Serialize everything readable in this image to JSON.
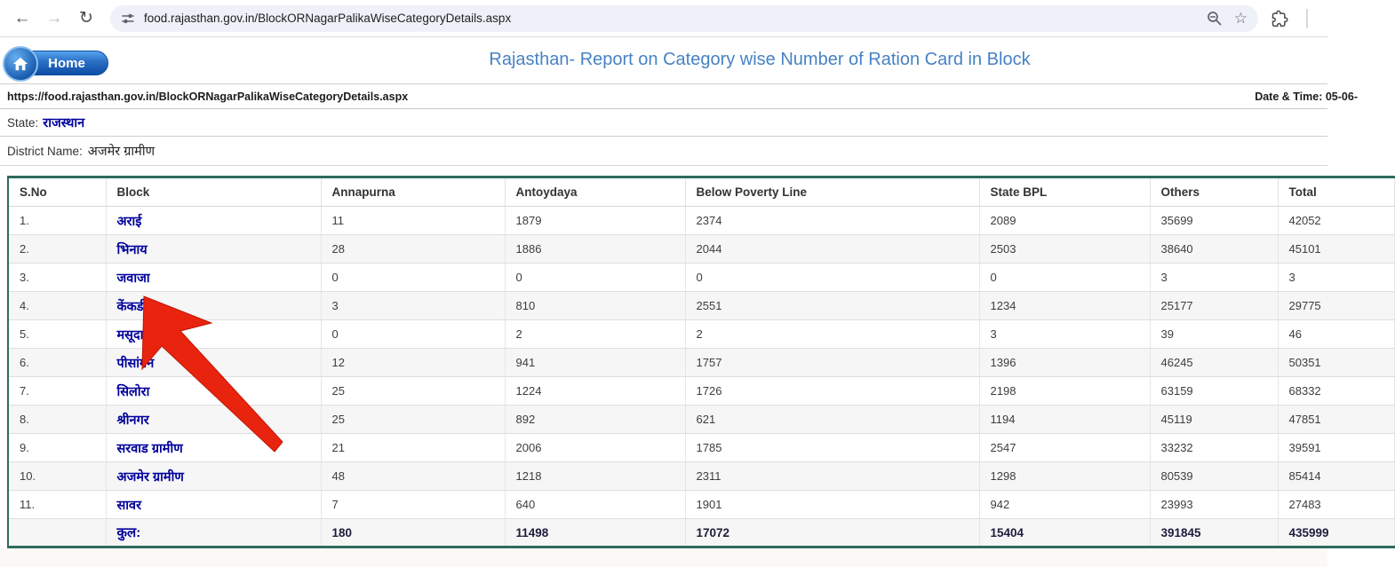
{
  "browser": {
    "url": "food.rajasthan.gov.in/BlockORNagarPalikaWiseCategoryDetails.aspx",
    "icons": {
      "back": "←",
      "forward": "→",
      "reload": "↻",
      "bookmark": "☆"
    }
  },
  "header": {
    "home_label": "Home",
    "title": "Rajasthan- Report on Category wise Number of Ration Card in Block"
  },
  "info_bar": {
    "page_url": "https://food.rajasthan.gov.in/BlockORNagarPalikaWiseCategoryDetails.aspx",
    "datetime": "Date & Time: 05-06-"
  },
  "filters": {
    "state_label": "State:",
    "state_value": "राजस्थान",
    "district_label": "District Name:",
    "district_value": "अजमेर ग्रामीण"
  },
  "table": {
    "headers": [
      "S.No",
      "Block",
      "Annapurna",
      "Antoydaya",
      "Below Poverty Line",
      "State BPL",
      "Others",
      "Total"
    ],
    "rows": [
      [
        "1.",
        "अराई",
        "11",
        "1879",
        "2374",
        "2089",
        "35699",
        "42052"
      ],
      [
        "2.",
        "भिनाय",
        "28",
        "1886",
        "2044",
        "2503",
        "38640",
        "45101"
      ],
      [
        "3.",
        "जवाजा",
        "0",
        "0",
        "0",
        "0",
        "3",
        "3"
      ],
      [
        "4.",
        "केंकडी",
        "3",
        "810",
        "2551",
        "1234",
        "25177",
        "29775"
      ],
      [
        "5.",
        "मसूदा",
        "0",
        "2",
        "2",
        "3",
        "39",
        "46"
      ],
      [
        "6.",
        "पीसांगन",
        "12",
        "941",
        "1757",
        "1396",
        "46245",
        "50351"
      ],
      [
        "7.",
        "सिलोरा",
        "25",
        "1224",
        "1726",
        "2198",
        "63159",
        "68332"
      ],
      [
        "8.",
        "श्रीनगर",
        "25",
        "892",
        "621",
        "1194",
        "45119",
        "47851"
      ],
      [
        "9.",
        "सरवाड ग्रामीण",
        "21",
        "2006",
        "1785",
        "2547",
        "33232",
        "39591"
      ],
      [
        "10.",
        "अजमेर ग्रामीण",
        "48",
        "1218",
        "2311",
        "1298",
        "80539",
        "85414"
      ],
      [
        "11.",
        "सावर",
        "7",
        "640",
        "1901",
        "942",
        "23993",
        "27483"
      ]
    ],
    "total_row": [
      "",
      "कुल:",
      "180",
      "11498",
      "17072",
      "15404",
      "391845",
      "435999"
    ]
  },
  "colors": {
    "title_blue": "#4682c4",
    "link_navy": "#00009c",
    "table_border_teal": "#2f6b5e",
    "arrow_red": "#e8240f",
    "home_button_blue": "#1f62b5"
  }
}
